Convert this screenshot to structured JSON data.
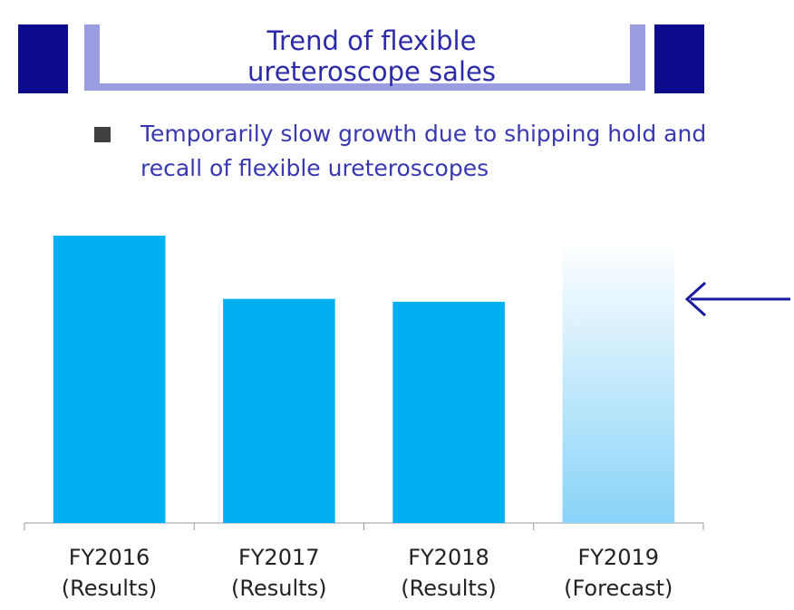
{
  "header": {
    "title": "Trend of flexible\nureteroscope sales"
  },
  "bullet": "Temporarily slow growth due to shipping hold and\nrecall of flexible ureteroscopes",
  "chart_data": {
    "type": "bar",
    "categories": [
      "FY2016\n(Results)",
      "FY2017\n(Results)",
      "FY2018\n(Results)",
      "FY2019\n(Forecast)"
    ],
    "values": [
      100,
      78,
      77,
      98
    ],
    "colors": [
      "#00b0f0",
      "#00b0f0",
      "#00b0f0",
      "#88d3f8"
    ],
    "ylim": [
      0,
      100
    ]
  }
}
